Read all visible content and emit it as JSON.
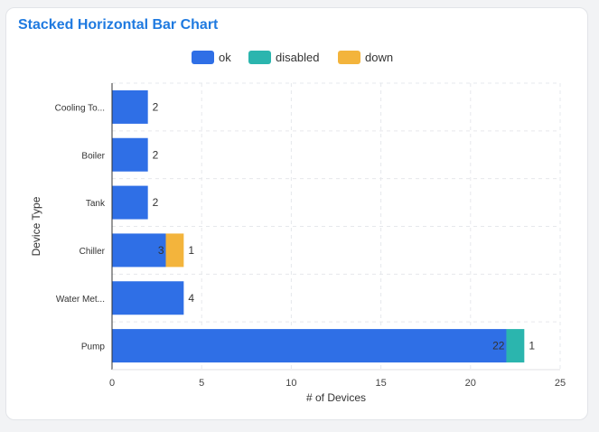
{
  "header": {
    "title": "Stacked Horizontal Bar Chart"
  },
  "chart_data": {
    "type": "bar",
    "orientation": "horizontal",
    "stacked": true,
    "categories": [
      "Cooling To...",
      "Boiler",
      "Tank",
      "Chiller",
      "Water Met...",
      "Pump"
    ],
    "series": [
      {
        "name": "ok",
        "color": "#2f6fe6",
        "values": [
          2,
          2,
          2,
          3,
          4,
          22
        ]
      },
      {
        "name": "disabled",
        "color": "#2bb5ae",
        "values": [
          0,
          0,
          0,
          0,
          0,
          1
        ]
      },
      {
        "name": "down",
        "color": "#f3b43c",
        "values": [
          0,
          0,
          0,
          1,
          0,
          0
        ]
      }
    ],
    "xlabel": "# of Devices",
    "ylabel": "Device Type",
    "xlim": [
      0,
      25
    ],
    "xticks": [
      0,
      5,
      10,
      15,
      20,
      25
    ],
    "grid": true,
    "legend_position": "top"
  }
}
